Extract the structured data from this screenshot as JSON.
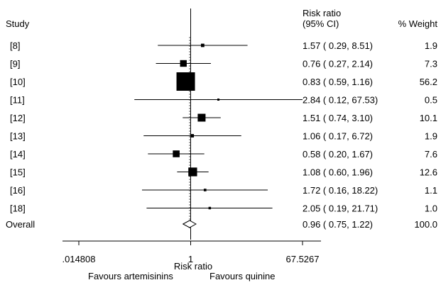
{
  "chart_data": {
    "type": "forest",
    "headers": {
      "study": "Study",
      "rr_line1": "Risk ratio",
      "rr_line2": "(95% CI)",
      "weight": "% Weight"
    },
    "studies": [
      {
        "label": "[8]",
        "rr": 1.57,
        "lo": 0.29,
        "hi": 8.51,
        "ci_text": "1.57 ( 0.29, 8.51)",
        "weight": 1.9,
        "weight_text": "1.9"
      },
      {
        "label": "[9]",
        "rr": 0.76,
        "lo": 0.27,
        "hi": 2.14,
        "ci_text": "0.76 ( 0.27, 2.14)",
        "weight": 7.3,
        "weight_text": "7.3"
      },
      {
        "label": "[10]",
        "rr": 0.83,
        "lo": 0.59,
        "hi": 1.16,
        "ci_text": "0.83 ( 0.59, 1.16)",
        "weight": 56.2,
        "weight_text": "56.2"
      },
      {
        "label": "[11]",
        "rr": 2.84,
        "lo": 0.12,
        "hi": 67.53,
        "ci_text": "2.84 ( 0.12, 67.53)",
        "weight": 0.5,
        "weight_text": "0.5"
      },
      {
        "label": "[12]",
        "rr": 1.51,
        "lo": 0.74,
        "hi": 3.1,
        "ci_text": "1.51 ( 0.74, 3.10)",
        "weight": 10.1,
        "weight_text": "10.1"
      },
      {
        "label": "[13]",
        "rr": 1.06,
        "lo": 0.17,
        "hi": 6.72,
        "ci_text": "1.06 ( 0.17, 6.72)",
        "weight": 1.9,
        "weight_text": "1.9"
      },
      {
        "label": "[14]",
        "rr": 0.58,
        "lo": 0.2,
        "hi": 1.67,
        "ci_text": "0.58 ( 0.20, 1.67)",
        "weight": 7.6,
        "weight_text": "7.6"
      },
      {
        "label": "[15]",
        "rr": 1.08,
        "lo": 0.6,
        "hi": 1.96,
        "ci_text": "1.08 ( 0.60, 1.96)",
        "weight": 12.6,
        "weight_text": "12.6"
      },
      {
        "label": "[16]",
        "rr": 1.72,
        "lo": 0.16,
        "hi": 18.22,
        "ci_text": "1.72 ( 0.16, 18.22)",
        "weight": 1.1,
        "weight_text": "1.1"
      },
      {
        "label": "[18]",
        "rr": 2.05,
        "lo": 0.19,
        "hi": 21.71,
        "ci_text": "2.05 ( 0.19, 21.71)",
        "weight": 1.0,
        "weight_text": "1.0"
      }
    ],
    "overall": {
      "label": "Overall",
      "rr": 0.96,
      "lo": 0.75,
      "hi": 1.22,
      "ci_text": "0.96 ( 0.75, 1.22)",
      "weight_text": "100.0"
    },
    "x_axis": {
      "scale": "log",
      "range": [
        0.014808,
        67.5267
      ],
      "ticks": [
        {
          "value": 0.014808,
          "label": ".014808"
        },
        {
          "value": 1,
          "label": "1"
        },
        {
          "value": 67.5267,
          "label": "67.5267"
        }
      ],
      "label": "Risk ratio"
    },
    "favours_left": "Favours artemisinins",
    "favours_right": "Favours quinine",
    "reference_line": 1
  }
}
